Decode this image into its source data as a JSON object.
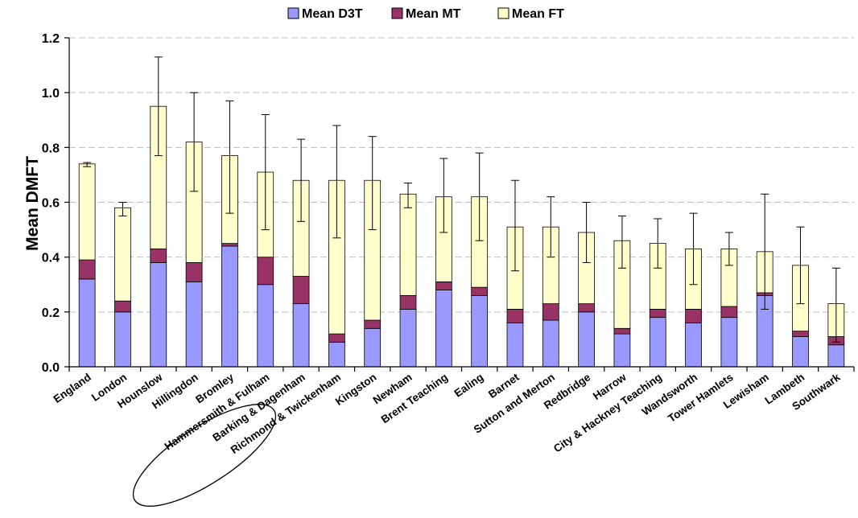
{
  "chart_data": {
    "type": "bar",
    "stacked": true,
    "ylabel": "Mean DMFT",
    "ylim": [
      0,
      1.2
    ],
    "yticks": [
      "0.0",
      "0.2",
      "0.4",
      "0.6",
      "0.8",
      "1.0",
      "1.2"
    ],
    "grid": true,
    "legend_position": "top",
    "error_bars": true,
    "annotation": "ellipse around Hammersmith & Fulham",
    "categories": [
      "England",
      "London",
      "Hounslow",
      "Hillingdon",
      "Bromley",
      "Hammersmith & Fulham",
      "Barking & Dagenham",
      "Richmond & Twickenham",
      "Kingston",
      "Newham",
      "Brent Teaching",
      "Ealing",
      "Barnet",
      "Sutton and Merton",
      "Redbridge",
      "Harrow",
      "City & Hackney Teaching",
      "Wandsworth",
      "Tower Hamlets",
      "Lewisham",
      "Lambeth",
      "Southwark"
    ],
    "series": [
      {
        "name": "Mean D3T",
        "color": "#9999ff",
        "values": [
          0.32,
          0.2,
          0.38,
          0.31,
          0.44,
          0.3,
          0.23,
          0.09,
          0.14,
          0.21,
          0.28,
          0.26,
          0.16,
          0.17,
          0.2,
          0.12,
          0.18,
          0.16,
          0.18,
          0.26,
          0.11,
          0.08
        ]
      },
      {
        "name": "Mean MT",
        "color": "#993366",
        "values": [
          0.07,
          0.04,
          0.05,
          0.07,
          0.01,
          0.1,
          0.1,
          0.03,
          0.03,
          0.05,
          0.03,
          0.03,
          0.05,
          0.06,
          0.03,
          0.02,
          0.03,
          0.05,
          0.04,
          0.01,
          0.02,
          0.03
        ]
      },
      {
        "name": "Mean FT",
        "color": "#ffffcc",
        "values": [
          0.35,
          0.34,
          0.52,
          0.44,
          0.32,
          0.31,
          0.35,
          0.56,
          0.51,
          0.37,
          0.31,
          0.33,
          0.3,
          0.28,
          0.26,
          0.32,
          0.24,
          0.22,
          0.21,
          0.15,
          0.24,
          0.12
        ]
      }
    ],
    "error_low": [
      0.73,
      0.55,
      0.77,
      0.64,
      0.56,
      0.5,
      0.53,
      0.47,
      0.5,
      0.58,
      0.49,
      0.46,
      0.35,
      0.4,
      0.38,
      0.36,
      0.36,
      0.3,
      0.37,
      0.21,
      0.23,
      0.09
    ],
    "error_high": [
      0.745,
      0.6,
      1.13,
      1.0,
      0.97,
      0.92,
      0.83,
      0.88,
      0.84,
      0.67,
      0.76,
      0.78,
      0.68,
      0.62,
      0.6,
      0.55,
      0.54,
      0.56,
      0.49,
      0.63,
      0.51,
      0.36
    ]
  }
}
